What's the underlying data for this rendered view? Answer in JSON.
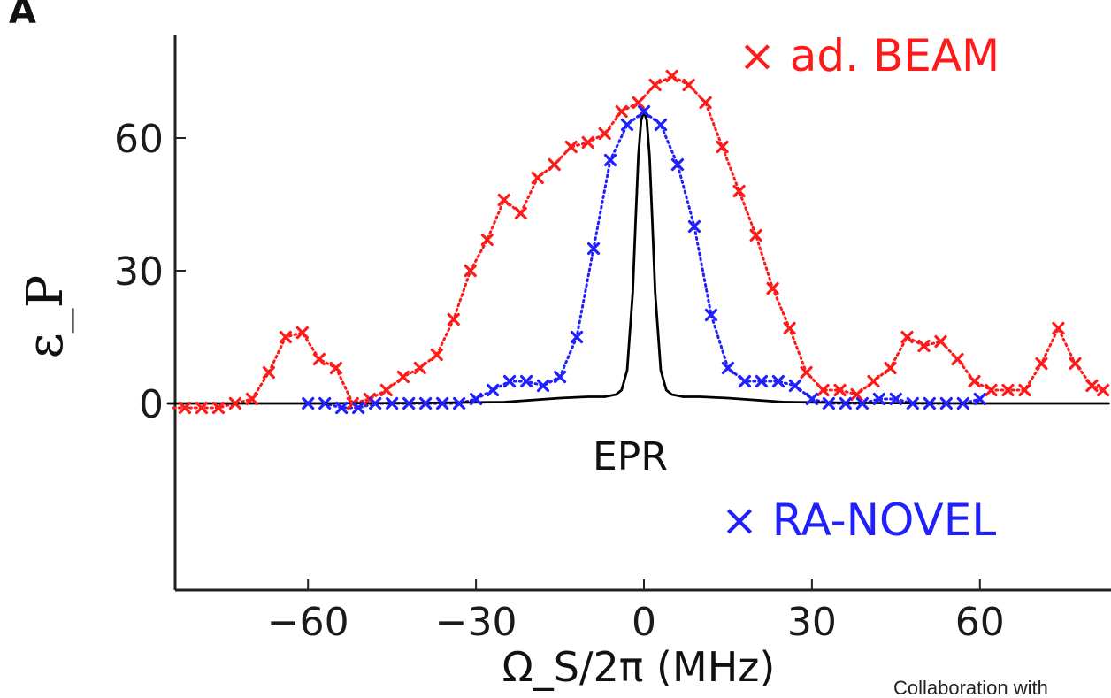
{
  "chart_data": {
    "type": "line",
    "panel_label": "A",
    "xlabel": "Ω_S/2π (MHz)",
    "ylabel": "ε_P",
    "xlim": [
      -85,
      83
    ],
    "ylim": [
      -42,
      83
    ],
    "xticks": [
      -60,
      -30,
      0,
      30,
      60
    ],
    "xtick_labels": [
      "−60",
      "−30",
      "0",
      "30",
      "60"
    ],
    "yticks": [
      0,
      30,
      60
    ],
    "ytick_labels": [
      "0",
      "30",
      "60"
    ],
    "grid": false,
    "legend_placement": "top-right / bottom-right",
    "annotations": [
      "EPR"
    ],
    "credit_text": "Collaboration with",
    "series": [
      {
        "name": "ad. BEAM",
        "legend_label": "× ad. BEAM",
        "color": "#ff1a1a",
        "style": "dotted line with x markers",
        "x": [
          -84,
          -82,
          -79,
          -76,
          -73,
          -70,
          -67,
          -64,
          -61,
          -58,
          -55,
          -52,
          -49,
          -46,
          -43,
          -40,
          -37,
          -34,
          -31,
          -28,
          -25,
          -22,
          -19,
          -16,
          -13,
          -10,
          -7,
          -4,
          -1,
          2,
          5,
          8,
          11,
          14,
          17,
          20,
          23,
          26,
          29,
          32,
          35,
          38,
          41,
          44,
          47,
          50,
          53,
          56,
          59,
          62,
          65,
          68,
          71,
          74,
          77,
          80,
          82
        ],
        "y": [
          -1,
          -1,
          -1,
          -1,
          0,
          1,
          7,
          15,
          16,
          10,
          8,
          0,
          1,
          3,
          6,
          8,
          11,
          19,
          30,
          37,
          46,
          43,
          51,
          54,
          58,
          59,
          61,
          66,
          68,
          72,
          74,
          72,
          68,
          58,
          48,
          38,
          26,
          17,
          7,
          3,
          3,
          2,
          5,
          8,
          15,
          13,
          14,
          10,
          5,
          3,
          3,
          3,
          9,
          17,
          9,
          4,
          3
        ]
      },
      {
        "name": "RA-NOVEL",
        "legend_label": "× RA-NOVEL",
        "color": "#2020ff",
        "style": "dotted line with x markers",
        "x": [
          -60,
          -57,
          -54,
          -51,
          -48,
          -45,
          -42,
          -39,
          -36,
          -33,
          -30,
          -27,
          -24,
          -21,
          -18,
          -15,
          -12,
          -9,
          -6,
          -3,
          0,
          3,
          6,
          9,
          12,
          15,
          18,
          21,
          24,
          27,
          30,
          33,
          36,
          39,
          42,
          45,
          48,
          51,
          54,
          57,
          60
        ],
        "y": [
          0,
          0,
          -1,
          -1,
          0,
          0,
          0,
          0,
          0,
          0,
          1,
          3,
          5,
          5,
          4,
          6,
          15,
          35,
          55,
          63,
          66,
          63,
          54,
          40,
          20,
          8,
          5,
          5,
          5,
          4,
          1,
          0,
          0,
          0,
          1,
          1,
          0,
          0,
          0,
          0,
          1
        ]
      },
      {
        "name": "EPR",
        "color": "#000000",
        "style": "solid line",
        "x": [
          -85,
          -60,
          -40,
          -25,
          -15,
          -10,
          -7,
          -5,
          -4,
          -3,
          -2,
          -1.5,
          -1,
          -0.5,
          0,
          0.5,
          1,
          1.5,
          2,
          3,
          4,
          5,
          7,
          10,
          15,
          25,
          40,
          60,
          83
        ],
        "y": [
          0,
          0,
          0.1,
          0.3,
          1.2,
          1.5,
          1.5,
          2,
          3,
          7.5,
          25,
          41,
          56,
          64,
          66,
          64,
          56,
          41,
          25,
          7.5,
          3,
          2,
          1.5,
          1.5,
          1.2,
          0.3,
          0.1,
          0,
          0
        ]
      }
    ]
  }
}
